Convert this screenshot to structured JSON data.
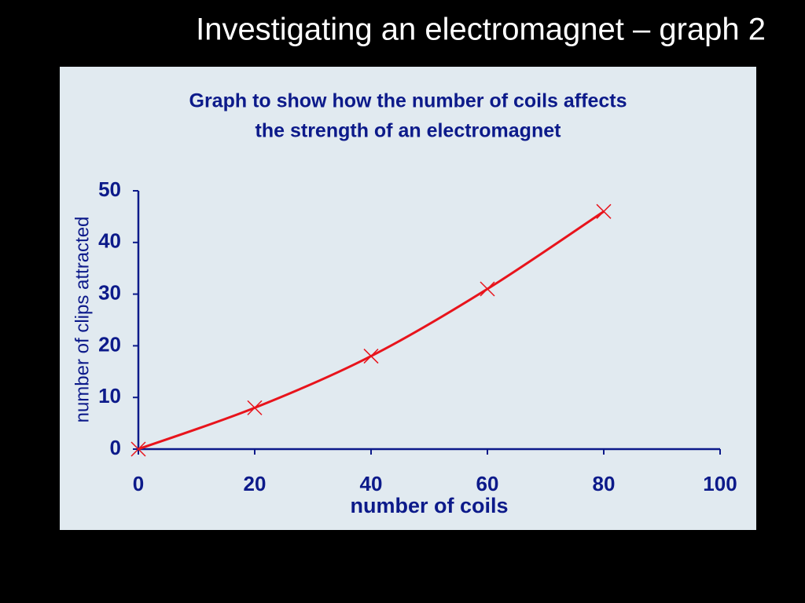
{
  "heading": "Investigating an electromagnet – graph 2",
  "chart_data": {
    "type": "line",
    "title": [
      "Graph to show how the number of coils affects",
      "the strength of an electromagnet"
    ],
    "x_label": "number of coils",
    "y_label": "number of clips attracted",
    "x": [
      0,
      20,
      40,
      60,
      80
    ],
    "values": [
      0,
      8,
      18,
      31,
      46
    ],
    "color": "#e8141c",
    "marker": "x",
    "xlim": [
      0,
      100
    ],
    "xticks": [
      0,
      20,
      40,
      60,
      80,
      100
    ],
    "ylim": [
      0,
      50
    ],
    "yticks": [
      0,
      10,
      20,
      30,
      40,
      50
    ],
    "grid": false
  }
}
